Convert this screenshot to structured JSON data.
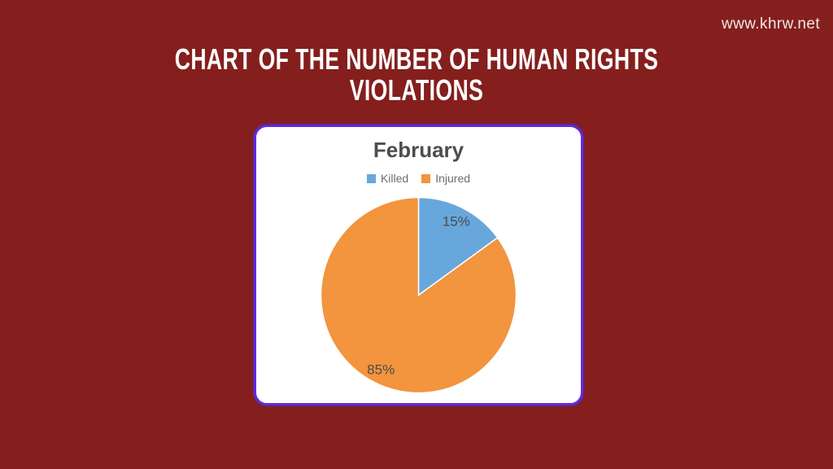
{
  "page": {
    "background_color": "#841f1d",
    "site_url": "www.khrw.net",
    "heading": "CHART OF THE NUMBER OF HUMAN RIGHTS VIOLATIONS"
  },
  "card": {
    "border_color": "#5d2be8",
    "background_color": "#ffffff"
  },
  "chart_data": {
    "type": "pie",
    "title": "February",
    "labels": [
      "Killed",
      "Injured"
    ],
    "values": [
      15,
      85
    ],
    "value_labels": [
      "15%",
      "85%"
    ],
    "colors": [
      "#68a7db",
      "#f3943e"
    ],
    "slice_label_color": "#4c4c4c",
    "legend_position": "top",
    "start_angle_deg": 0,
    "direction": "clockwise"
  }
}
